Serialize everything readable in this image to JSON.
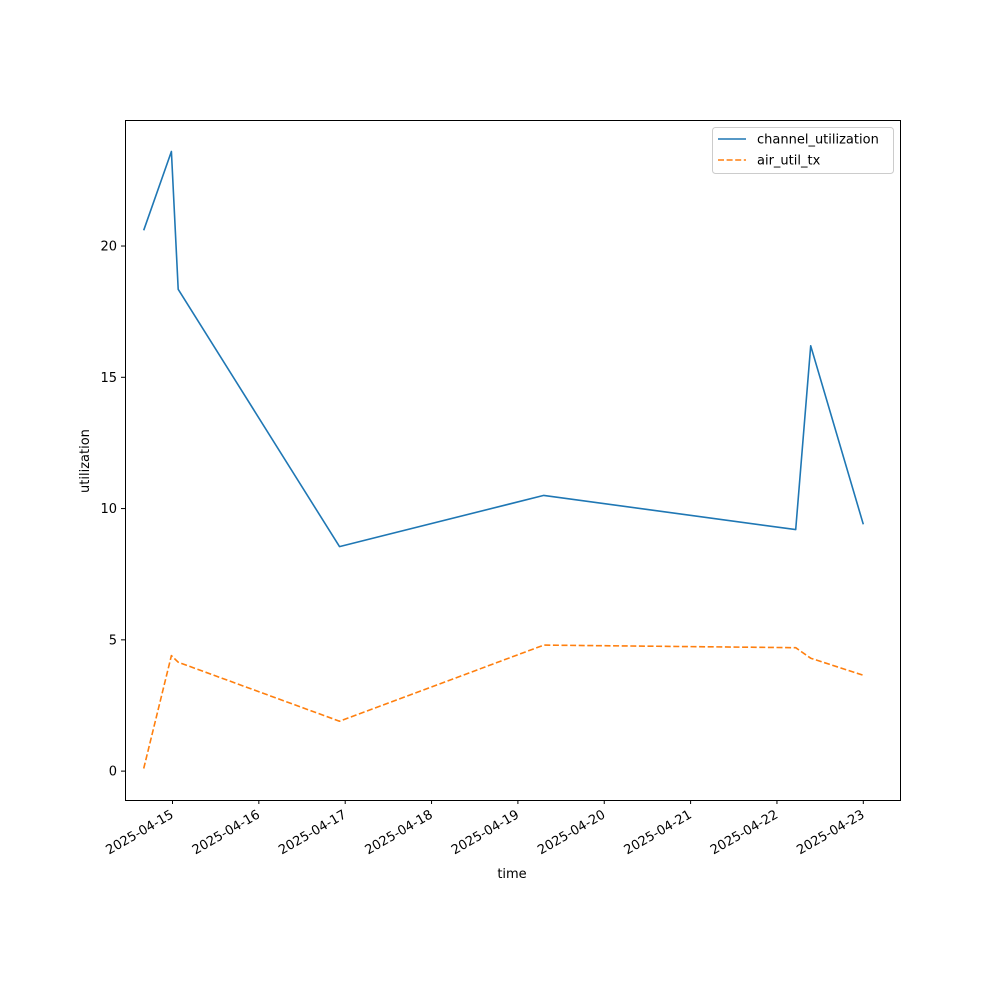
{
  "chart_data": {
    "type": "line",
    "xlabel": "time",
    "ylabel": "utilization",
    "x_ticks": [
      "2025-04-15",
      "2025-04-16",
      "2025-04-17",
      "2025-04-18",
      "2025-04-19",
      "2025-04-20",
      "2025-04-21",
      "2025-04-22",
      "2025-04-23"
    ],
    "y_ticks": [
      0,
      5,
      10,
      15,
      20
    ],
    "xlim": [
      "2025-04-14T10:48",
      "2025-04-23T10:12"
    ],
    "ylim": [
      -1.1,
      24.8
    ],
    "grid": false,
    "legend_position": "top-right",
    "series": [
      {
        "name": "channel_utilization",
        "color": "#1f77b4",
        "linestyle": "solid",
        "points": [
          {
            "x": "2025-04-14T16:00",
            "y": 20.6
          },
          {
            "x": "2025-04-14T23:42",
            "y": 23.6
          },
          {
            "x": "2025-04-15T01:36",
            "y": 18.35
          },
          {
            "x": "2025-04-16T22:25",
            "y": 8.55
          },
          {
            "x": "2025-04-19T07:12",
            "y": 10.5
          },
          {
            "x": "2025-04-22T05:13",
            "y": 9.2
          },
          {
            "x": "2025-04-22T09:22",
            "y": 16.2
          },
          {
            "x": "2025-04-23T00:00",
            "y": 9.4
          }
        ]
      },
      {
        "name": "air_util_tx",
        "color": "#ff7f0e",
        "linestyle": "dashed",
        "points": [
          {
            "x": "2025-04-14T16:00",
            "y": 0.1
          },
          {
            "x": "2025-04-14T23:42",
            "y": 4.4
          },
          {
            "x": "2025-04-15T01:36",
            "y": 4.15
          },
          {
            "x": "2025-04-16T22:25",
            "y": 1.9
          },
          {
            "x": "2025-04-19T07:12",
            "y": 4.8
          },
          {
            "x": "2025-04-22T05:13",
            "y": 4.7
          },
          {
            "x": "2025-04-22T09:22",
            "y": 4.3
          },
          {
            "x": "2025-04-23T00:00",
            "y": 3.65
          }
        ]
      }
    ]
  }
}
